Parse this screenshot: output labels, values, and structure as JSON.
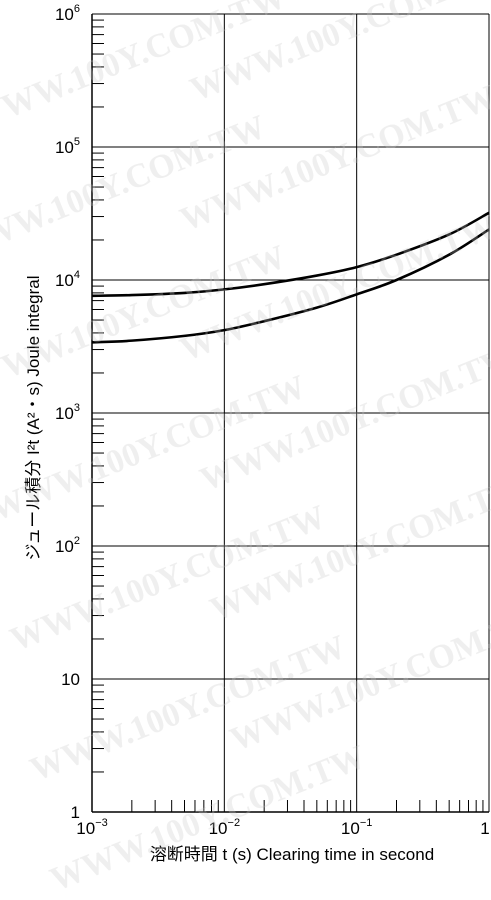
{
  "chart_data": {
    "type": "line",
    "title": "",
    "xlabel": "溶断時間 t (s)  Clearing time in second",
    "ylabel": "ジュール積分 I²t (A²・s)  Joule integral",
    "xscale": "log",
    "yscale": "log",
    "xlim": [
      0.001,
      1
    ],
    "ylim": [
      1,
      1000000
    ],
    "grid": true,
    "legend": "none",
    "x_ticks": [
      {
        "value": 0.001,
        "base": "10",
        "exp": "−3"
      },
      {
        "value": 0.01,
        "base": "10",
        "exp": "−2"
      },
      {
        "value": 0.1,
        "base": "10",
        "exp": "−1"
      },
      {
        "value": 1,
        "base": "1",
        "exp": ""
      }
    ],
    "y_ticks": [
      {
        "value": 1,
        "base": "1",
        "exp": ""
      },
      {
        "value": 10,
        "base": "10",
        "exp": ""
      },
      {
        "value": 100,
        "base": "10",
        "exp": "2"
      },
      {
        "value": 1000,
        "base": "10",
        "exp": "3"
      },
      {
        "value": 10000,
        "base": "10",
        "exp": "4"
      },
      {
        "value": 100000,
        "base": "10",
        "exp": "5"
      },
      {
        "value": 1000000,
        "base": "10",
        "exp": "6"
      }
    ],
    "series": [
      {
        "x": [
          0.001,
          0.002,
          0.005,
          0.01,
          0.02,
          0.05,
          0.1,
          0.2,
          0.5,
          1
        ],
        "y": [
          7600,
          7700,
          8000,
          8500,
          9300,
          10800,
          12500,
          15500,
          22000,
          32000
        ]
      },
      {
        "x": [
          0.001,
          0.002,
          0.005,
          0.01,
          0.02,
          0.05,
          0.1,
          0.2,
          0.5,
          1
        ],
        "y": [
          3400,
          3500,
          3800,
          4200,
          4900,
          6200,
          7800,
          10000,
          15500,
          24000
        ]
      }
    ],
    "line_color": "#000000"
  },
  "watermark": {
    "text": "WWW.100Y.COM.TW",
    "color": "#c8c8c8"
  }
}
